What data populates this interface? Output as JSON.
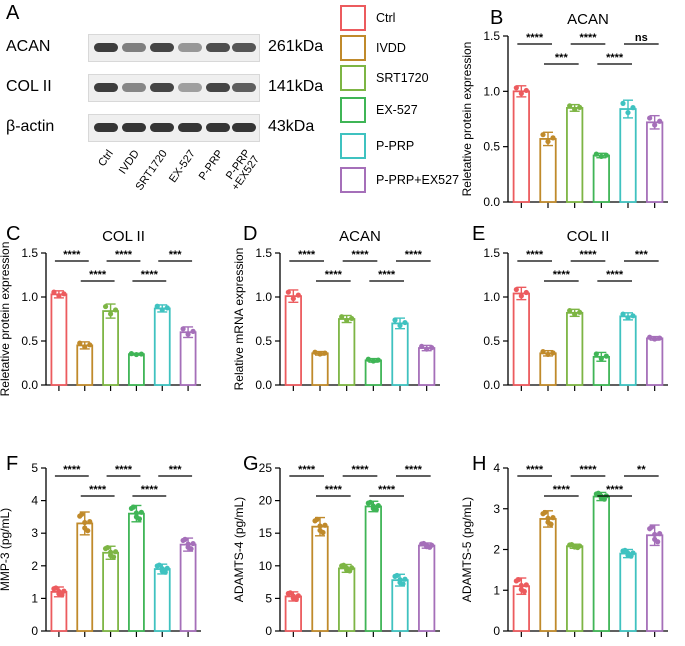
{
  "western_blot": {
    "panel_letter": "A",
    "rows": [
      {
        "protein": "ACAN",
        "size": "261kDa",
        "intensity": [
          0.9,
          0.5,
          0.85,
          0.35,
          0.8,
          0.75
        ]
      },
      {
        "protein": "COL II",
        "size": "141kDa",
        "intensity": [
          0.9,
          0.45,
          0.85,
          0.3,
          0.85,
          0.7
        ]
      },
      {
        "protein": "β-actin",
        "size": "43kDa",
        "intensity": [
          0.95,
          0.95,
          0.95,
          0.95,
          0.95,
          0.95
        ]
      }
    ],
    "lanes": [
      "Ctrl",
      "IVDD",
      "SRT1720",
      "EX-527",
      "P-PRP",
      "P-PRP\n+EX527"
    ]
  },
  "legend": {
    "items": [
      {
        "label": "Ctrl",
        "color": "#ec5b5e"
      },
      {
        "label": "IVDD",
        "color": "#c08a2b"
      },
      {
        "label": "SRT1720",
        "color": "#7db544"
      },
      {
        "label": "EX-527",
        "color": "#3fb556"
      },
      {
        "label": "P-PRP",
        "color": "#3fc2c0"
      },
      {
        "label": "P-PRP+EX527",
        "color": "#a56fb9"
      }
    ]
  },
  "chart_data": [
    {
      "panel": "B",
      "type": "bar",
      "title": "ACAN",
      "ylabel": "Reletative protein expression",
      "ylim": [
        0,
        1.5
      ],
      "yticks": [
        0,
        0.5,
        1.0,
        1.5
      ],
      "categories": [
        "Ctrl",
        "IVDD",
        "SRT1720",
        "EX-527",
        "P-PRP",
        "P-PRP+EX527"
      ],
      "values": [
        1.0,
        0.57,
        0.85,
        0.42,
        0.84,
        0.72
      ],
      "errors": [
        0.05,
        0.06,
        0.03,
        0.02,
        0.08,
        0.06
      ],
      "significance": [
        {
          "from": 0,
          "to": 1,
          "label": "****",
          "level": 1
        },
        {
          "from": 1,
          "to": 2,
          "label": "***",
          "level": 0
        },
        {
          "from": 2,
          "to": 3,
          "label": "****",
          "level": 1
        },
        {
          "from": 3,
          "to": 4,
          "label": "****",
          "level": 0
        },
        {
          "from": 4,
          "to": 5,
          "label": "ns",
          "level": 1
        }
      ]
    },
    {
      "panel": "C",
      "type": "bar",
      "title": "COL II",
      "ylabel": "Reletative protein expression",
      "ylim": [
        0,
        1.5
      ],
      "yticks": [
        0,
        0.5,
        1.0,
        1.5
      ],
      "categories": [
        "Ctrl",
        "IVDD",
        "SRT1720",
        "EX-527",
        "P-PRP",
        "P-PRP+EX527"
      ],
      "values": [
        1.03,
        0.45,
        0.84,
        0.35,
        0.87,
        0.6
      ],
      "errors": [
        0.04,
        0.04,
        0.08,
        0.01,
        0.04,
        0.06
      ],
      "significance": [
        {
          "from": 0,
          "to": 1,
          "label": "****",
          "level": 1
        },
        {
          "from": 1,
          "to": 2,
          "label": "****",
          "level": 0
        },
        {
          "from": 2,
          "to": 3,
          "label": "****",
          "level": 1
        },
        {
          "from": 3,
          "to": 4,
          "label": "****",
          "level": 0
        },
        {
          "from": 4,
          "to": 5,
          "label": "***",
          "level": 1
        }
      ]
    },
    {
      "panel": "D",
      "type": "bar",
      "title": "ACAN",
      "ylabel": "Relative mRNA expression",
      "ylim": [
        0,
        1.5
      ],
      "yticks": [
        0,
        0.5,
        1.0,
        1.5
      ],
      "categories": [
        "Ctrl",
        "IVDD",
        "SRT1720",
        "EX-527",
        "P-PRP",
        "P-PRP+EX527"
      ],
      "values": [
        1.01,
        0.36,
        0.75,
        0.28,
        0.7,
        0.42
      ],
      "errors": [
        0.07,
        0.02,
        0.04,
        0.02,
        0.06,
        0.03
      ],
      "significance": [
        {
          "from": 0,
          "to": 1,
          "label": "****",
          "level": 1
        },
        {
          "from": 1,
          "to": 2,
          "label": "****",
          "level": 0
        },
        {
          "from": 2,
          "to": 3,
          "label": "****",
          "level": 1
        },
        {
          "from": 3,
          "to": 4,
          "label": "****",
          "level": 0
        },
        {
          "from": 4,
          "to": 5,
          "label": "****",
          "level": 1
        }
      ]
    },
    {
      "panel": "E",
      "type": "bar",
      "title": "COL II",
      "ylabel": "",
      "ylim": [
        0,
        1.5
      ],
      "yticks": [
        0,
        0.5,
        1.0,
        1.5
      ],
      "categories": [
        "Ctrl",
        "IVDD",
        "SRT1720",
        "EX-527",
        "P-PRP",
        "P-PRP+EX527"
      ],
      "values": [
        1.04,
        0.36,
        0.82,
        0.32,
        0.78,
        0.53
      ],
      "errors": [
        0.07,
        0.03,
        0.04,
        0.05,
        0.04,
        0.02
      ],
      "significance": [
        {
          "from": 0,
          "to": 1,
          "label": "****",
          "level": 1
        },
        {
          "from": 1,
          "to": 2,
          "label": "****",
          "level": 0
        },
        {
          "from": 2,
          "to": 3,
          "label": "****",
          "level": 1
        },
        {
          "from": 3,
          "to": 4,
          "label": "****",
          "level": 0
        },
        {
          "from": 4,
          "to": 5,
          "label": "***",
          "level": 1
        }
      ]
    },
    {
      "panel": "F",
      "type": "bar",
      "title": "",
      "ylabel": "MMP-3 (pg/mL)",
      "ylim": [
        0,
        5
      ],
      "yticks": [
        0,
        1,
        2,
        3,
        4,
        5
      ],
      "categories": [
        "Ctrl",
        "IVDD",
        "SRT1720",
        "EX-527",
        "P-PRP",
        "P-PRP+EX527"
      ],
      "values": [
        1.2,
        3.3,
        2.4,
        3.6,
        1.9,
        2.65
      ],
      "errors": [
        0.15,
        0.35,
        0.2,
        0.25,
        0.15,
        0.2
      ],
      "significance": [
        {
          "from": 0,
          "to": 1,
          "label": "****",
          "level": 1
        },
        {
          "from": 1,
          "to": 2,
          "label": "****",
          "level": 0
        },
        {
          "from": 2,
          "to": 3,
          "label": "****",
          "level": 1
        },
        {
          "from": 3,
          "to": 4,
          "label": "****",
          "level": 0
        },
        {
          "from": 4,
          "to": 5,
          "label": "***",
          "level": 1
        }
      ]
    },
    {
      "panel": "G",
      "type": "bar",
      "title": "",
      "ylabel": "ADAMTS-4 (pg/mL)",
      "ylim": [
        0,
        25
      ],
      "yticks": [
        0,
        5,
        10,
        15,
        20,
        25
      ],
      "categories": [
        "Ctrl",
        "IVDD",
        "SRT1720",
        "EX-527",
        "P-PRP",
        "P-PRP+EX527"
      ],
      "values": [
        5.3,
        16.0,
        9.6,
        19.1,
        7.8,
        13.1
      ],
      "errors": [
        0.7,
        1.4,
        0.6,
        0.8,
        0.9,
        0.4
      ],
      "significance": [
        {
          "from": 0,
          "to": 1,
          "label": "****",
          "level": 1
        },
        {
          "from": 1,
          "to": 2,
          "label": "****",
          "level": 0
        },
        {
          "from": 2,
          "to": 3,
          "label": "****",
          "level": 1
        },
        {
          "from": 3,
          "to": 4,
          "label": "****",
          "level": 0
        },
        {
          "from": 4,
          "to": 5,
          "label": "****",
          "level": 1
        }
      ]
    },
    {
      "panel": "H",
      "type": "bar",
      "title": "",
      "ylabel": "ADAMTS-5 (pg/mL)",
      "ylim": [
        0,
        4
      ],
      "yticks": [
        0,
        1,
        2,
        3,
        4
      ],
      "categories": [
        "Ctrl",
        "IVDD",
        "SRT1720",
        "EX-527",
        "P-PRP",
        "P-PRP+EX527"
      ],
      "values": [
        1.1,
        2.75,
        2.08,
        3.3,
        1.9,
        2.35
      ],
      "errors": [
        0.2,
        0.2,
        0.05,
        0.1,
        0.1,
        0.25
      ],
      "significance": [
        {
          "from": 0,
          "to": 1,
          "label": "****",
          "level": 1
        },
        {
          "from": 1,
          "to": 2,
          "label": "****",
          "level": 0
        },
        {
          "from": 2,
          "to": 3,
          "label": "****",
          "level": 1
        },
        {
          "from": 3,
          "to": 4,
          "label": "****",
          "level": 0
        },
        {
          "from": 4,
          "to": 5,
          "label": "**",
          "level": 1
        }
      ]
    }
  ]
}
